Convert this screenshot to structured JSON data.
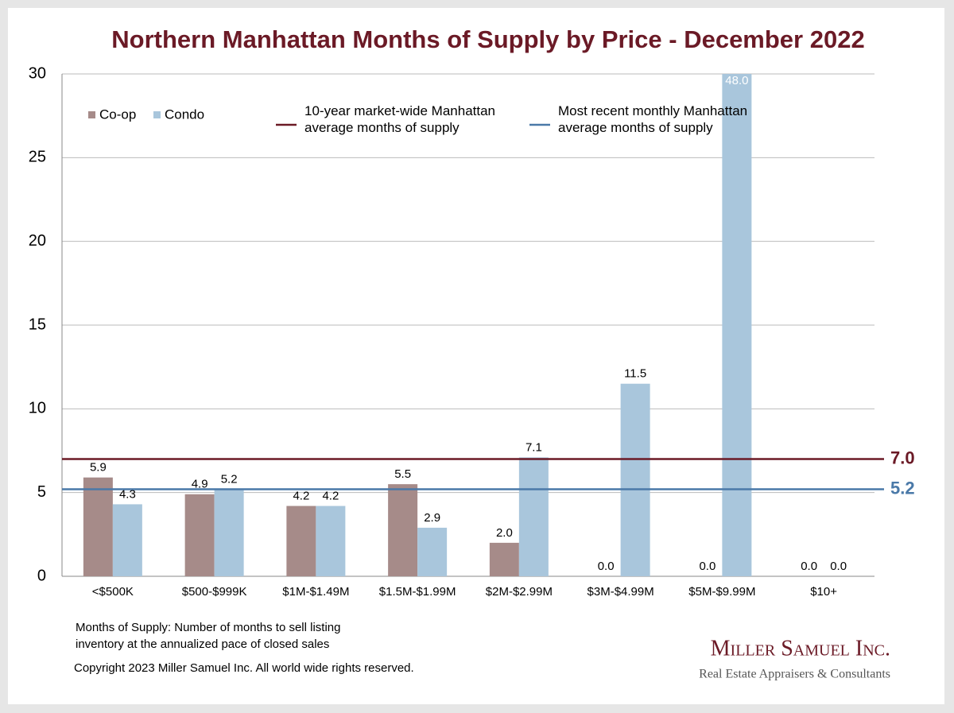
{
  "chart_data": {
    "type": "bar",
    "title": "Northern Manhattan Months of Supply by Price - December 2022",
    "categories": [
      "<$500K",
      "$500-$999K",
      "$1M-$1.49M",
      "$1.5M-$1.99M",
      "$2M-$2.99M",
      "$3M-$4.99M",
      "$5M-$9.99M",
      "$10+"
    ],
    "series": [
      {
        "name": "Co-op",
        "color": "#a68b89",
        "values": [
          5.9,
          4.9,
          4.2,
          5.5,
          2.0,
          0,
          0,
          0
        ],
        "value_labels": [
          "5.9",
          "4.9",
          "4.2",
          "5.5",
          "2.0",
          "0.0",
          "0.0",
          "0.0"
        ]
      },
      {
        "name": "Condo",
        "color": "#a9c6dc",
        "values": [
          4.3,
          5.2,
          4.2,
          2.9,
          7.1,
          11.5,
          48.0,
          0
        ],
        "value_labels": [
          "4.3",
          "5.2",
          "4.2",
          "2.9",
          "7.1",
          "11.5",
          "48.0",
          "0.0"
        ]
      }
    ],
    "reference_lines": [
      {
        "name": "10-year market-wide Manhattan\naverage months of supply",
        "value": 7.0,
        "label": "7.0",
        "color": "#6b1a26"
      },
      {
        "name": "Most recent monthly Manhattan\naverage months of supply",
        "value": 5.2,
        "label": "5.2",
        "color": "#4a79a8"
      }
    ],
    "ylim": [
      0,
      30
    ],
    "yticks": [
      0,
      5,
      10,
      15,
      20,
      25,
      30
    ],
    "grid": true,
    "note": [
      "Months of Supply: Number of months to sell listing",
      "inventory at the annualized pace of closed sales"
    ],
    "copyright": "Copyright 2023 Miller Samuel Inc.  All world wide rights reserved.",
    "logo": {
      "name": "Miller Samuel Inc.",
      "tagline": "Real Estate Appraisers & Consultants"
    }
  }
}
